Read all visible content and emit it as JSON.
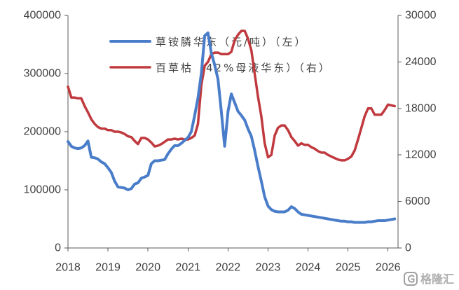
{
  "chart_data": {
    "type": "line",
    "x_ticks": [
      "2018",
      "2019",
      "2020",
      "2021",
      "2022",
      "2023",
      "2024",
      "2025",
      "2026"
    ],
    "xlim": [
      "2018-01",
      "2026-04"
    ],
    "y_left": {
      "ticks": [
        "0",
        "100000",
        "200000",
        "300000",
        "400000"
      ],
      "range": [
        0,
        400000
      ]
    },
    "y_right": {
      "ticks": [
        "0",
        "6000",
        "12000",
        "18000",
        "24000",
        "30000"
      ],
      "range": [
        0,
        30000
      ]
    },
    "grid": false,
    "legend_position": "top-center",
    "x": [
      "2018-01",
      "2018-02",
      "2018-03",
      "2018-04",
      "2018-05",
      "2018-06",
      "2018-07",
      "2018-08",
      "2018-09",
      "2018-10",
      "2018-11",
      "2018-12",
      "2019-01",
      "2019-02",
      "2019-03",
      "2019-04",
      "2019-05",
      "2019-06",
      "2019-07",
      "2019-08",
      "2019-09",
      "2019-10",
      "2019-11",
      "2019-12",
      "2020-01",
      "2020-02",
      "2020-03",
      "2020-04",
      "2020-05",
      "2020-06",
      "2020-07",
      "2020-08",
      "2020-09",
      "2020-10",
      "2020-11",
      "2020-12",
      "2021-01",
      "2021-02",
      "2021-03",
      "2021-04",
      "2021-05",
      "2021-06",
      "2021-07",
      "2021-08",
      "2021-09",
      "2021-10",
      "2021-11",
      "2021-12",
      "2022-01",
      "2022-02",
      "2022-03",
      "2022-04",
      "2022-05",
      "2022-06",
      "2022-07",
      "2022-08",
      "2022-09",
      "2022-10",
      "2022-11",
      "2022-12",
      "2023-01",
      "2023-02",
      "2023-03",
      "2023-04",
      "2023-05",
      "2023-06",
      "2023-07",
      "2023-08",
      "2023-09",
      "2023-10",
      "2023-11",
      "2023-12",
      "2024-01",
      "2024-02",
      "2024-03",
      "2024-04",
      "2024-05",
      "2024-06",
      "2024-07",
      "2024-08",
      "2024-09",
      "2024-10",
      "2024-11",
      "2024-12",
      "2025-01",
      "2025-02",
      "2025-03",
      "2025-04",
      "2025-05",
      "2025-06",
      "2025-07",
      "2025-08",
      "2025-09",
      "2025-10",
      "2025-11",
      "2025-12",
      "2026-01",
      "2026-02",
      "2026-03"
    ],
    "series": [
      {
        "name": "草铵膦华东（元/吨）（左）",
        "axis": "left",
        "color": "#4A7DC9",
        "values": [
          183000,
          175000,
          172000,
          171000,
          172000,
          176000,
          184000,
          156000,
          155000,
          153000,
          148000,
          145000,
          138000,
          130000,
          115000,
          105000,
          104000,
          103000,
          100000,
          102000,
          110000,
          112000,
          120000,
          122000,
          125000,
          145000,
          150000,
          150000,
          151000,
          152000,
          162000,
          170000,
          176000,
          176000,
          180000,
          185000,
          190000,
          200000,
          228000,
          258000,
          300000,
          365000,
          370000,
          335000,
          315000,
          290000,
          235000,
          175000,
          235000,
          265000,
          250000,
          235000,
          228000,
          220000,
          205000,
          192000,
          168000,
          140000,
          115000,
          88000,
          72000,
          66000,
          63000,
          62000,
          62000,
          62000,
          65000,
          71000,
          68000,
          62000,
          58000,
          57000,
          56000,
          55000,
          54000,
          53000,
          52000,
          51000,
          50000,
          49000,
          48000,
          47000,
          46000,
          46000,
          45000,
          45000,
          44000,
          44000,
          44000,
          44000,
          45000,
          45000,
          46000,
          47000,
          47000,
          47000,
          48000,
          49000,
          50000
        ]
      },
      {
        "name": "百草枯（42%母液华东）（右）",
        "axis": "right",
        "color": "#C0393E",
        "values": [
          20800,
          19400,
          19400,
          19300,
          19300,
          18300,
          17500,
          16600,
          16000,
          15600,
          15400,
          15400,
          15200,
          15200,
          15000,
          15000,
          14900,
          14700,
          14400,
          14300,
          13800,
          13400,
          14200,
          14200,
          14000,
          13600,
          13100,
          13200,
          13400,
          13700,
          14000,
          14000,
          14100,
          14000,
          14100,
          14000,
          14000,
          14200,
          14500,
          16000,
          21000,
          23500,
          24000,
          25000,
          25200,
          25200,
          25000,
          25000,
          25000,
          25300,
          26800,
          27500,
          28000,
          28000,
          27000,
          25500,
          22500,
          19500,
          17000,
          13500,
          11700,
          12000,
          14500,
          15500,
          15800,
          15800,
          15200,
          14300,
          13800,
          13200,
          13500,
          13300,
          13300,
          13000,
          12800,
          12500,
          12300,
          12300,
          12000,
          11800,
          11600,
          11400,
          11300,
          11300,
          11500,
          11800,
          12600,
          14000,
          15500,
          17000,
          18000,
          18000,
          17200,
          17200,
          17200,
          17800,
          18500,
          18400,
          18300
        ]
      }
    ]
  },
  "watermark": {
    "text": "格隆汇",
    "color": "#A0A0A0"
  }
}
